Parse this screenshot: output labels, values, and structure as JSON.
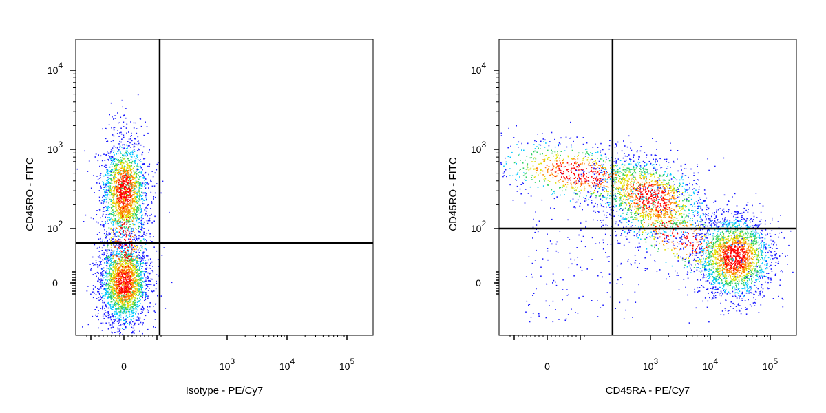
{
  "chart_data": [
    {
      "type": "scatter",
      "subtype": "flow-cytometry-density-dot-plot",
      "title": "",
      "xlabel": "Isotype - PE/Cy7",
      "ylabel": "CD45RO - FITC",
      "x_scale": "biexponential",
      "y_scale": "biexponential",
      "x_ticks": [
        {
          "value": "0",
          "base": "0",
          "exp": ""
        },
        {
          "value": "1000",
          "base": "10",
          "exp": "3"
        },
        {
          "value": "10000",
          "base": "10",
          "exp": "4"
        },
        {
          "value": "100000",
          "base": "10",
          "exp": "5"
        }
      ],
      "y_ticks": [
        {
          "value": "0",
          "base": "0",
          "exp": ""
        },
        {
          "value": "100",
          "base": "10",
          "exp": "2"
        },
        {
          "value": "1000",
          "base": "10",
          "exp": "3"
        },
        {
          "value": "10000",
          "base": "10",
          "exp": "4"
        }
      ],
      "gate": {
        "x": 120,
        "y": 60
      },
      "populations": [
        {
          "name": "",
          "x_center": 0,
          "y_center": 300,
          "density": "high"
        },
        {
          "name": "",
          "x_center": 0,
          "y_center": 0,
          "density": "highest"
        }
      ],
      "grid": false,
      "legend": "none"
    },
    {
      "type": "scatter",
      "subtype": "flow-cytometry-density-dot-plot",
      "title": "",
      "xlabel": "CD45RA - PE/Cy7",
      "ylabel": "CD45RO - FITC",
      "x_scale": "biexponential",
      "y_scale": "biexponential",
      "x_ticks": [
        {
          "value": "0",
          "base": "0",
          "exp": ""
        },
        {
          "value": "1000",
          "base": "10",
          "exp": "3"
        },
        {
          "value": "10000",
          "base": "10",
          "exp": "4"
        },
        {
          "value": "100000",
          "base": "10",
          "exp": "5"
        }
      ],
      "y_ticks": [
        {
          "value": "0",
          "base": "0",
          "exp": ""
        },
        {
          "value": "100",
          "base": "10",
          "exp": "2"
        },
        {
          "value": "1000",
          "base": "10",
          "exp": "3"
        },
        {
          "value": "10000",
          "base": "10",
          "exp": "4"
        }
      ],
      "gate": {
        "x": 400,
        "y": 100
      },
      "populations": [
        {
          "name": "",
          "x_center": 100,
          "y_center": 500,
          "density": "medium"
        },
        {
          "name": "",
          "x_center": 1000,
          "y_center": 250,
          "density": "high"
        },
        {
          "name": "",
          "x_center": 25000,
          "y_center": 30,
          "density": "highest"
        }
      ],
      "grid": false,
      "legend": "none"
    }
  ],
  "colors": {
    "density_low": "#1a1aff",
    "density_mid_low": "#00c8ff",
    "density_mid": "#30d060",
    "density_mid_high": "#e0e000",
    "density_high": "#ff8000",
    "density_max": "#ff0000",
    "gate_line": "#000000",
    "axis": "#000000"
  }
}
